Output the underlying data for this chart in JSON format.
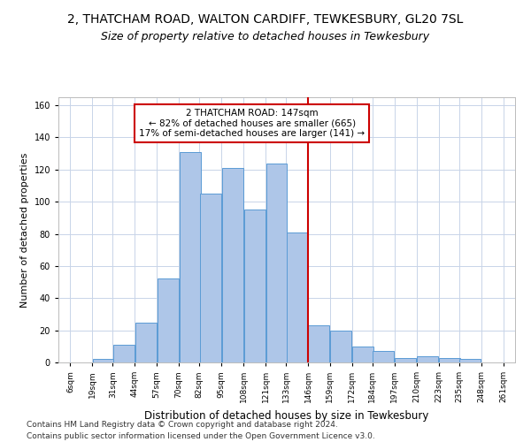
{
  "title1": "2, THATCHAM ROAD, WALTON CARDIFF, TEWKESBURY, GL20 7SL",
  "title2": "Size of property relative to detached houses in Tewkesbury",
  "xlabel": "Distribution of detached houses by size in Tewkesbury",
  "ylabel": "Number of detached properties",
  "bar_left_edges": [
    6,
    19,
    31,
    44,
    57,
    70,
    82,
    95,
    108,
    121,
    133,
    146,
    159,
    172,
    184,
    197,
    210,
    223,
    235,
    248
  ],
  "bar_heights": [
    0,
    2,
    11,
    25,
    52,
    131,
    105,
    121,
    95,
    124,
    81,
    23,
    20,
    10,
    7,
    3,
    4,
    3,
    2,
    0
  ],
  "bin_width": 13,
  "xtick_labels": [
    "6sqm",
    "19sqm",
    "31sqm",
    "44sqm",
    "57sqm",
    "70sqm",
    "82sqm",
    "95sqm",
    "108sqm",
    "121sqm",
    "133sqm",
    "146sqm",
    "159sqm",
    "172sqm",
    "184sqm",
    "197sqm",
    "210sqm",
    "223sqm",
    "235sqm",
    "248sqm",
    "261sqm"
  ],
  "xtick_positions": [
    6,
    19,
    31,
    44,
    57,
    70,
    82,
    95,
    108,
    121,
    133,
    146,
    159,
    172,
    184,
    197,
    210,
    223,
    235,
    248,
    261
  ],
  "bar_color": "#aec6e8",
  "bar_edge_color": "#5b9bd5",
  "vline_x": 146,
  "vline_color": "#cc0000",
  "annotation_line1": "2 THATCHAM ROAD: 147sqm",
  "annotation_line2": "← 82% of detached houses are smaller (665)",
  "annotation_line3": "17% of semi-detached houses are larger (141) →",
  "annotation_box_color": "#ffffff",
  "annotation_box_edge": "#cc0000",
  "ylim": [
    0,
    165
  ],
  "xlim_min": 6,
  "xlim_max": 261,
  "background_color": "#ffffff",
  "grid_color": "#c8d4e8",
  "footer1": "Contains HM Land Registry data © Crown copyright and database right 2024.",
  "footer2": "Contains public sector information licensed under the Open Government Licence v3.0.",
  "title1_fontsize": 10,
  "title2_fontsize": 9,
  "xlabel_fontsize": 8.5,
  "ylabel_fontsize": 8,
  "tick_fontsize": 6.5,
  "annotation_fontsize": 7.5,
  "footer_fontsize": 6.5
}
